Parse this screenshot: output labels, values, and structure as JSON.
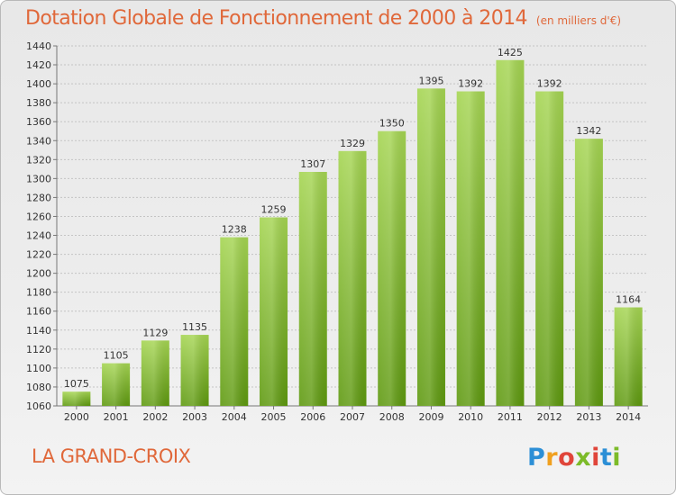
{
  "header": {
    "title": "Dotation Globale de Fonctionnement de 2000 à 2014",
    "subtitle": "(en milliers d'€)"
  },
  "footer": {
    "place_name": "LA GRAND-CROIX",
    "logo_text": "Proxiti"
  },
  "colors": {
    "title": "#e0683a",
    "bar_top": "#9fd04a",
    "bar_bottom": "#5f9a10"
  },
  "chart_data": {
    "type": "bar",
    "categories": [
      "2000",
      "2001",
      "2002",
      "2003",
      "2004",
      "2005",
      "2006",
      "2007",
      "2008",
      "2009",
      "2010",
      "2011",
      "2012",
      "2013",
      "2014"
    ],
    "values": [
      1075,
      1105,
      1129,
      1135,
      1238,
      1259,
      1307,
      1329,
      1350,
      1395,
      1392,
      1425,
      1392,
      1342,
      1164
    ],
    "title": "Dotation Globale de Fonctionnement de 2000 à 2014",
    "subtitle": "(en milliers d'€)",
    "xlabel": "",
    "ylabel": "",
    "ylim": [
      1060,
      1440
    ],
    "yticks": [
      1060,
      1080,
      1100,
      1120,
      1140,
      1160,
      1180,
      1200,
      1220,
      1240,
      1260,
      1280,
      1300,
      1320,
      1340,
      1360,
      1380,
      1400,
      1420,
      1440
    ],
    "grid": "horizontal",
    "data_labels": true
  }
}
